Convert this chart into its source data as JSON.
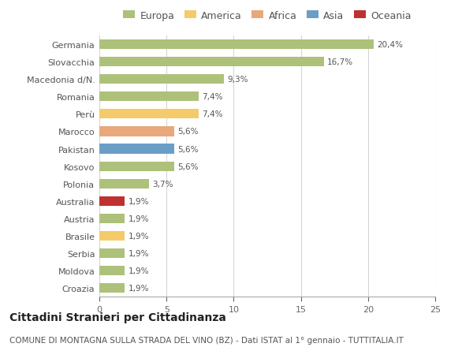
{
  "categories": [
    "Croazia",
    "Moldova",
    "Serbia",
    "Brasile",
    "Austria",
    "Australia",
    "Polonia",
    "Kosovo",
    "Pakistan",
    "Marocco",
    "Perù",
    "Romania",
    "Macedonia d/N.",
    "Slovacchia",
    "Germania"
  ],
  "values": [
    1.9,
    1.9,
    1.9,
    1.9,
    1.9,
    1.9,
    3.7,
    5.6,
    5.6,
    5.6,
    7.4,
    7.4,
    9.3,
    16.7,
    20.4
  ],
  "colors": [
    "#adc17a",
    "#adc17a",
    "#adc17a",
    "#f5ca6a",
    "#adc17a",
    "#bf3030",
    "#adc17a",
    "#adc17a",
    "#6b9ec7",
    "#e8a87c",
    "#f5ca6a",
    "#adc17a",
    "#adc17a",
    "#adc17a",
    "#adc17a"
  ],
  "labels": [
    "1,9%",
    "1,9%",
    "1,9%",
    "1,9%",
    "1,9%",
    "1,9%",
    "3,7%",
    "5,6%",
    "5,6%",
    "5,6%",
    "7,4%",
    "7,4%",
    "9,3%",
    "16,7%",
    "20,4%"
  ],
  "legend_labels": [
    "Europa",
    "America",
    "Africa",
    "Asia",
    "Oceania"
  ],
  "legend_colors": [
    "#adc17a",
    "#f5ca6a",
    "#e8a87c",
    "#6b9ec7",
    "#bf3030"
  ],
  "title": "Cittadini Stranieri per Cittadinanza",
  "subtitle": "COMUNE DI MONTAGNA SULLA STRADA DEL VINO (BZ) - Dati ISTAT al 1° gennaio - TUTTITALIA.IT",
  "xlim": [
    0,
    25
  ],
  "xticks": [
    0,
    5,
    10,
    15,
    20,
    25
  ],
  "background_color": "#ffffff",
  "grid_color": "#d5d5d5",
  "bar_height": 0.55,
  "title_fontsize": 10,
  "subtitle_fontsize": 7.5,
  "label_fontsize": 7.5,
  "tick_fontsize": 8,
  "legend_fontsize": 9
}
